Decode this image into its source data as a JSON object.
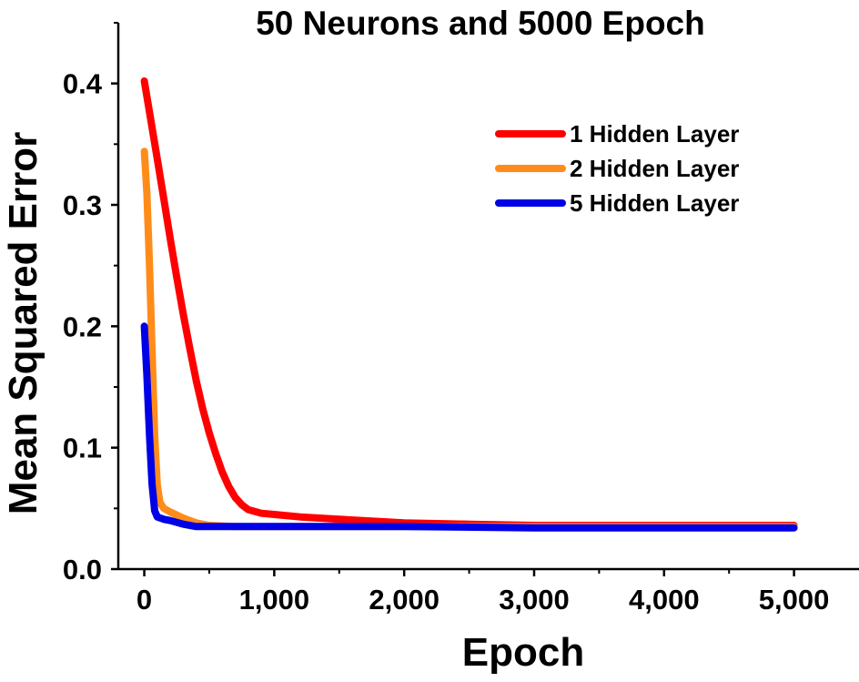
{
  "chart_data": {
    "type": "line",
    "title": "50 Neurons and 5000 Epoch",
    "xlabel": "Epoch",
    "ylabel": "Mean Squared Error",
    "xlim": [
      -200,
      5500
    ],
    "ylim": [
      0,
      0.45
    ],
    "x_ticks": [
      0,
      1000,
      2000,
      3000,
      4000,
      5000
    ],
    "x_tick_labels": [
      "0",
      "1,000",
      "2,000",
      "3,000",
      "4,000",
      "5,000"
    ],
    "y_ticks": [
      0.0,
      0.1,
      0.2,
      0.3,
      0.4
    ],
    "y_tick_labels": [
      "0.0",
      "0.1",
      "0.2",
      "0.3",
      "0.4"
    ],
    "grid": false,
    "legend_position": "top-right",
    "series": [
      {
        "name": "1 Hidden Layer",
        "color": "#ff0000",
        "x": [
          0,
          50,
          100,
          150,
          200,
          250,
          300,
          350,
          400,
          450,
          500,
          550,
          600,
          650,
          700,
          750,
          800,
          900,
          1000,
          1200,
          1500,
          2000,
          2500,
          3000,
          4000,
          5000
        ],
        "y": [
          0.402,
          0.37,
          0.338,
          0.305,
          0.272,
          0.24,
          0.21,
          0.182,
          0.155,
          0.132,
          0.112,
          0.095,
          0.08,
          0.068,
          0.059,
          0.053,
          0.049,
          0.046,
          0.045,
          0.043,
          0.041,
          0.038,
          0.037,
          0.036,
          0.036,
          0.036
        ]
      },
      {
        "name": "2 Hidden Layer",
        "color": "#ff8c1a",
        "x": [
          0,
          20,
          40,
          60,
          80,
          100,
          120,
          150,
          200,
          300,
          400,
          500,
          700,
          1000,
          2000,
          3000,
          4000,
          5000
        ],
        "y": [
          0.344,
          0.31,
          0.25,
          0.18,
          0.11,
          0.07,
          0.055,
          0.05,
          0.047,
          0.042,
          0.038,
          0.036,
          0.035,
          0.035,
          0.035,
          0.035,
          0.035,
          0.035
        ]
      },
      {
        "name": "5 Hidden Layer",
        "color": "#0000e6",
        "x": [
          0,
          20,
          40,
          60,
          80,
          100,
          150,
          200,
          300,
          400,
          500,
          1000,
          2000,
          3000,
          4000,
          5000
        ],
        "y": [
          0.2,
          0.16,
          0.11,
          0.07,
          0.048,
          0.043,
          0.041,
          0.04,
          0.037,
          0.035,
          0.035,
          0.035,
          0.035,
          0.034,
          0.034,
          0.034
        ]
      }
    ]
  }
}
